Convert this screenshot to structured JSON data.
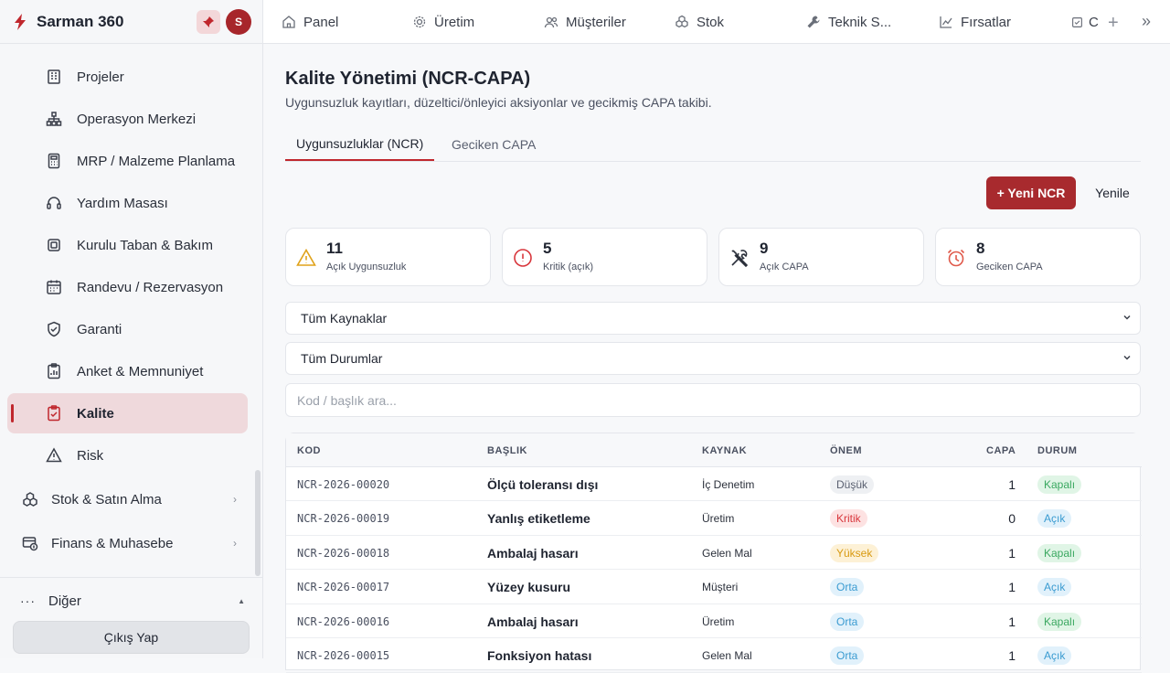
{
  "app": {
    "name": "Sarman 360",
    "avatar_initial": "S"
  },
  "sidebar": {
    "items": [
      {
        "label": "Projeler",
        "icon": "building-icon"
      },
      {
        "label": "Operasyon Merkezi",
        "icon": "hierarchy-icon"
      },
      {
        "label": "MRP / Malzeme Planlama",
        "icon": "calculator-icon"
      },
      {
        "label": "Yardım Masası",
        "icon": "headset-icon"
      },
      {
        "label": "Kurulu Taban & Bakım",
        "icon": "device-icon"
      },
      {
        "label": "Randevu / Rezervasyon",
        "icon": "calendar-icon"
      },
      {
        "label": "Garanti",
        "icon": "shield-check-icon"
      },
      {
        "label": "Anket & Memnuniyet",
        "icon": "survey-icon"
      },
      {
        "label": "Kalite",
        "icon": "clipboard-check-icon",
        "active": true
      },
      {
        "label": "Risk",
        "icon": "warning-icon"
      }
    ],
    "groups": [
      {
        "label": "Stok & Satın Alma",
        "icon": "boxes-icon",
        "chevron": "›"
      },
      {
        "label": "Finans & Muhasebe",
        "icon": "finance-icon",
        "chevron": "›"
      }
    ],
    "footer": {
      "other_label": "Diğer",
      "other_dots": "···",
      "other_caret": "▲",
      "logout_label": "Çıkış Yap"
    }
  },
  "topbar": {
    "tabs": [
      {
        "label": "Panel",
        "icon": "home-icon"
      },
      {
        "label": "Üretim",
        "icon": "cog-icon"
      },
      {
        "label": "Müşteriler",
        "icon": "users-icon"
      },
      {
        "label": "Stok",
        "icon": "boxes-icon"
      },
      {
        "label": "Teknik S...",
        "icon": "wrench-icon"
      },
      {
        "label": "Fırsatlar",
        "icon": "trend-icon"
      },
      {
        "label": "C",
        "icon": "checkbox-icon"
      }
    ],
    "plus": "+",
    "more": "»"
  },
  "page": {
    "title": "Kalite Yönetimi (NCR-CAPA)",
    "subtitle": "Uygunsuzluk kayıtları, düzeltici/önleyici aksiyonlar ve gecikmiş CAPA takibi.",
    "tabs": [
      {
        "label": "Uygunsuzluklar (NCR)",
        "active": true
      },
      {
        "label": "Geciken CAPA",
        "active": false
      }
    ],
    "new_button": "+ Yeni NCR",
    "refresh_button": "Yenile"
  },
  "stats": [
    {
      "value": "11",
      "label": "Açık Uygunsuzluk",
      "icon": "warning-triangle-icon",
      "color": "#e0a21a"
    },
    {
      "value": "5",
      "label": "Kritik (açık)",
      "icon": "alert-circle-icon",
      "color": "#d8363c"
    },
    {
      "value": "9",
      "label": "Açık CAPA",
      "icon": "tools-icon",
      "color": "#2a2f3a"
    },
    {
      "value": "8",
      "label": "Geciken CAPA",
      "icon": "alarm-clock-icon",
      "color": "#e0594a"
    }
  ],
  "filters": {
    "source_selected": "Tüm Kaynaklar",
    "status_selected": "Tüm Durumlar",
    "search_placeholder": "Kod / başlık ara..."
  },
  "table": {
    "headers": {
      "code": "KOD",
      "title": "BAŞLIK",
      "source": "KAYNAK",
      "severity": "ÖNEM",
      "capa": "CAPA",
      "status": "DURUM"
    },
    "rows": [
      {
        "code": "NCR-2026-00020",
        "title": "Ölçü toleransı dışı",
        "source": "İç Denetim",
        "severity": "Düşük",
        "capa": "1",
        "status": "Kapalı"
      },
      {
        "code": "NCR-2026-00019",
        "title": "Yanlış etiketleme",
        "source": "Üretim",
        "severity": "Kritik",
        "capa": "0",
        "status": "Açık"
      },
      {
        "code": "NCR-2026-00018",
        "title": "Ambalaj hasarı",
        "source": "Gelen Mal",
        "severity": "Yüksek",
        "capa": "1",
        "status": "Kapalı"
      },
      {
        "code": "NCR-2026-00017",
        "title": "Yüzey kusuru",
        "source": "Müşteri",
        "severity": "Orta",
        "capa": "1",
        "status": "Açık"
      },
      {
        "code": "NCR-2026-00016",
        "title": "Ambalaj hasarı",
        "source": "Üretim",
        "severity": "Orta",
        "capa": "1",
        "status": "Kapalı"
      },
      {
        "code": "NCR-2026-00015",
        "title": "Fonksiyon hatası",
        "source": "Gelen Mal",
        "severity": "Orta",
        "capa": "1",
        "status": "Açık"
      }
    ]
  },
  "colors": {
    "brand": "#c0272d",
    "severity": {
      "Düşük": [
        "#eef0f3",
        "#5a6070"
      ],
      "Kritik": [
        "#fde2e2",
        "#d8363c"
      ],
      "Yüksek": [
        "#fdf1d6",
        "#d89a12"
      ],
      "Orta": [
        "#e1f1fb",
        "#3a9bd1"
      ]
    },
    "status": {
      "Kapalı": [
        "#e0f5e6",
        "#3aa860"
      ],
      "Açık": [
        "#e1f1fb",
        "#3a9bd1"
      ]
    }
  }
}
